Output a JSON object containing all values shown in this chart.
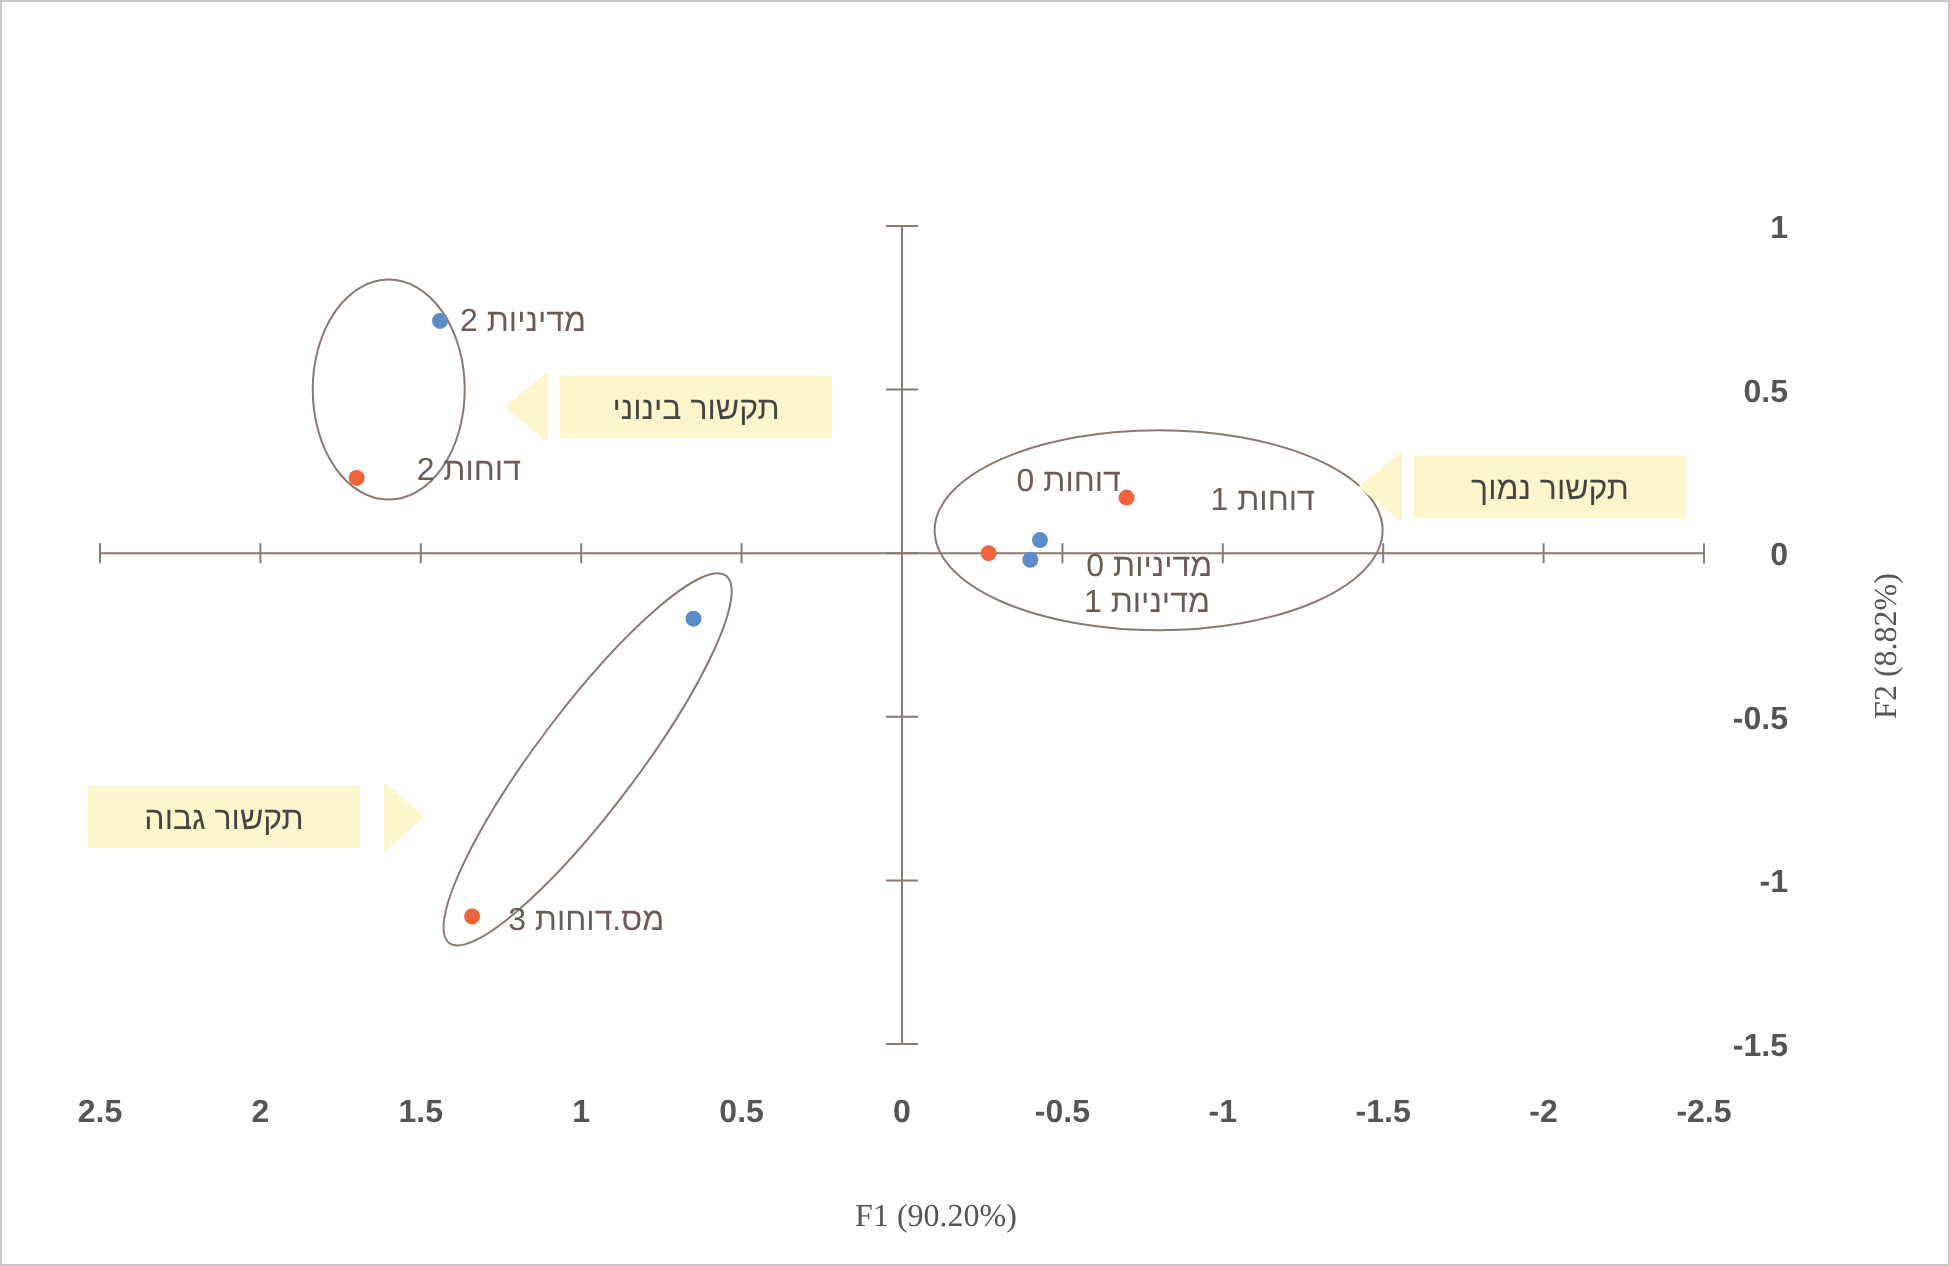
{
  "chart_data": {
    "type": "scatter",
    "xlabel": "F1 (90.20%)",
    "ylabel": "F2 (8.82%)",
    "xlim": [
      2.5,
      -2.5
    ],
    "xticks": [
      2.5,
      2,
      1.5,
      1,
      0.5,
      0,
      -0.5,
      -1,
      -1.5,
      -2,
      -2.5
    ],
    "ylim": [
      -1.5,
      1
    ],
    "yticks": [
      -1.5,
      -1,
      -0.5,
      0,
      0.5,
      1
    ],
    "marker": "circle",
    "series": [
      {
        "color": "#5b8bc9",
        "x": [
          1.44,
          0.65,
          -0.4,
          -0.43
        ],
        "values": [
          0.71,
          -0.2,
          -0.02,
          0.04
        ]
      },
      {
        "color": "#f0643c",
        "x": [
          1.7,
          1.34,
          -0.27,
          -0.7
        ],
        "values": [
          0.23,
          -1.11,
          0.0,
          0.17
        ]
      }
    ],
    "annotations": [
      {
        "text": "מדיניות 2",
        "x": 1.44,
        "y": 0.71
      },
      {
        "text": "דוחות 2",
        "x": 1.7,
        "y": 0.23
      },
      {
        "text": "מס.דוחות 3",
        "x": 1.34,
        "y": -1.11
      },
      {
        "text": "דוחות 0",
        "x": -0.27,
        "y": 0.0
      },
      {
        "text": "דוחות 1",
        "x": -0.7,
        "y": 0.17
      },
      {
        "text": "מדיניות 0",
        "x": -0.4,
        "y": -0.02
      },
      {
        "text": "מדיניות 1",
        "x": -0.43,
        "y": 0.04
      },
      "תקשור נמוך",
      "תקשור בינוני",
      "תקשור גבוה"
    ]
  }
}
